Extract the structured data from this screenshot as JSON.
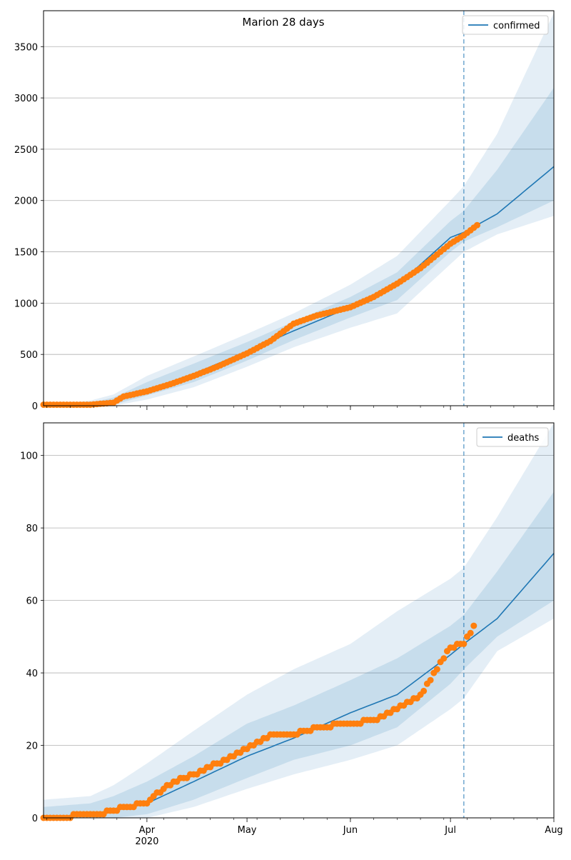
{
  "title": "Marion 28 days",
  "colors": {
    "model": "#1f77b4",
    "observed": "#ff7f0e",
    "grid": "#b0b0b0"
  },
  "x_axis": {
    "start": "2020-03-01",
    "end": "2020-08-01",
    "tick_labels": [
      "Apr",
      "May",
      "Jun",
      "Jul",
      "Aug"
    ],
    "tick_dates": [
      "2020-04-01",
      "2020-05-01",
      "2020-06-01",
      "2020-07-01",
      "2020-08-01"
    ],
    "year_label": "2020",
    "forecast_start": "2020-07-05"
  },
  "chart_data": [
    {
      "type": "line",
      "legend": "confirmed",
      "legend_position": "top-right",
      "grid": "horizontal",
      "ylim": [
        0,
        3850
      ],
      "yticks": [
        0,
        500,
        1000,
        1500,
        2000,
        2500,
        3000,
        3500
      ],
      "model": {
        "dates": [
          "2020-03-01",
          "2020-03-15",
          "2020-03-22",
          "2020-04-01",
          "2020-04-15",
          "2020-05-01",
          "2020-05-15",
          "2020-06-01",
          "2020-06-15",
          "2020-07-01",
          "2020-07-05",
          "2020-07-15",
          "2020-08-01"
        ],
        "values": [
          0,
          10,
          40,
          150,
          310,
          530,
          730,
          960,
          1170,
          1640,
          1690,
          1870,
          2330
        ],
        "band_outer_upper": [
          5,
          50,
          110,
          290,
          480,
          700,
          900,
          1180,
          1460,
          2000,
          2140,
          2650,
          3830
        ],
        "band_outer_lower": [
          0,
          0,
          0,
          60,
          180,
          380,
          570,
          760,
          900,
          1380,
          1500,
          1670,
          1850
        ],
        "band_inner_upper": [
          2,
          30,
          80,
          230,
          410,
          620,
          820,
          1060,
          1300,
          1800,
          1900,
          2300,
          3100
        ],
        "band_inner_lower": [
          0,
          0,
          10,
          100,
          230,
          440,
          640,
          860,
          1030,
          1500,
          1600,
          1740,
          2000
        ]
      },
      "observed": {
        "dates": [
          "2020-03-01",
          "2020-03-15",
          "2020-03-22",
          "2020-03-25",
          "2020-04-01",
          "2020-04-08",
          "2020-04-15",
          "2020-04-22",
          "2020-05-01",
          "2020-05-08",
          "2020-05-15",
          "2020-05-22",
          "2020-06-01",
          "2020-06-08",
          "2020-06-15",
          "2020-06-22",
          "2020-07-01",
          "2020-07-05",
          "2020-07-09"
        ],
        "values": [
          10,
          10,
          30,
          90,
          140,
          210,
          290,
          380,
          510,
          630,
          800,
          880,
          960,
          1060,
          1190,
          1340,
          1580,
          1660,
          1760
        ]
      }
    },
    {
      "type": "line",
      "legend": "deaths",
      "legend_position": "top-right",
      "grid": "horizontal",
      "ylim": [
        0,
        109
      ],
      "yticks": [
        0,
        20,
        40,
        60,
        80,
        100
      ],
      "model": {
        "dates": [
          "2020-03-01",
          "2020-03-15",
          "2020-03-22",
          "2020-04-01",
          "2020-04-15",
          "2020-05-01",
          "2020-05-15",
          "2020-06-01",
          "2020-06-15",
          "2020-07-01",
          "2020-07-05",
          "2020-07-15",
          "2020-08-01"
        ],
        "values": [
          0,
          1,
          2,
          4,
          10,
          17,
          22,
          29,
          34,
          45,
          48,
          55,
          73
        ],
        "band_outer_upper": [
          5,
          6,
          9,
          15,
          24,
          34,
          41,
          48,
          57,
          66,
          69,
          83,
          109
        ],
        "band_outer_lower": [
          0,
          0,
          0,
          0,
          3,
          8,
          12,
          16,
          20,
          30,
          33,
          46,
          55
        ],
        "band_inner_upper": [
          3,
          4,
          6,
          10,
          17,
          26,
          31,
          38,
          44,
          53,
          56,
          68,
          90
        ],
        "band_inner_lower": [
          0,
          0,
          0,
          1,
          5,
          11,
          16,
          20,
          25,
          37,
          41,
          50,
          60
        ]
      },
      "observed": {
        "dates": [
          "2020-03-01",
          "2020-03-18",
          "2020-03-22",
          "2020-03-25",
          "2020-04-01",
          "2020-04-07",
          "2020-04-15",
          "2020-04-22",
          "2020-05-01",
          "2020-05-08",
          "2020-05-15",
          "2020-05-22",
          "2020-06-01",
          "2020-06-08",
          "2020-06-15",
          "2020-06-22",
          "2020-07-01",
          "2020-07-05",
          "2020-07-08"
        ],
        "values": [
          0,
          1,
          2,
          3,
          4,
          9,
          12,
          15,
          19,
          23,
          23,
          25,
          26,
          27,
          30,
          34,
          47,
          48,
          53
        ]
      }
    }
  ]
}
